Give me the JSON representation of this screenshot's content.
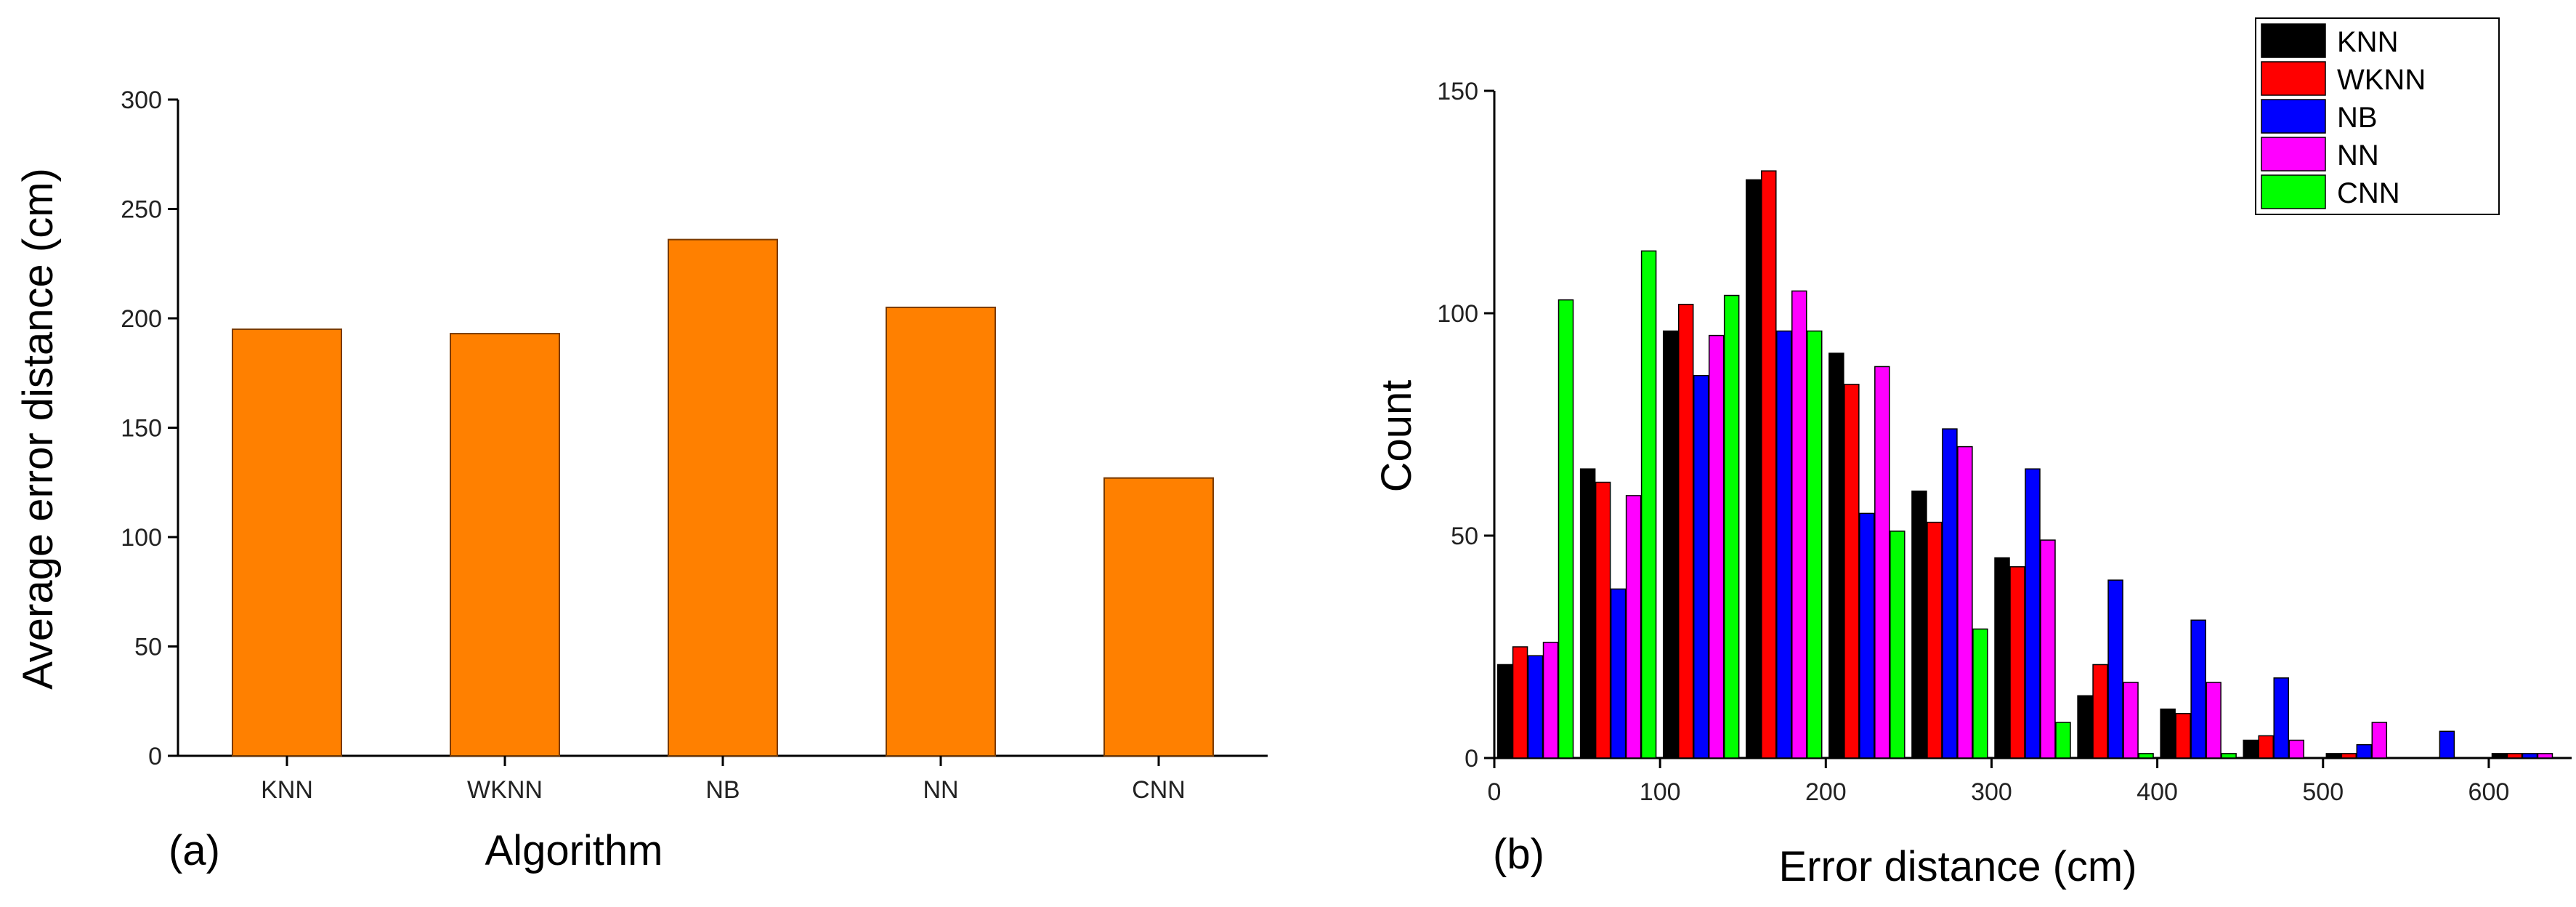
{
  "chart_data": [
    {
      "type": "bar",
      "panel_label": "(a)",
      "title": "",
      "xlabel": "Algorithm",
      "ylabel": "Average error distance (cm)",
      "categories": [
        "KNN",
        "WKNN",
        "NB",
        "NN",
        "CNN"
      ],
      "values": [
        195,
        193,
        236,
        205,
        127
      ],
      "ylim": [
        0,
        300
      ],
      "yticks": [
        0,
        50,
        100,
        150,
        200,
        250,
        300
      ],
      "bar_color": "#FF8000",
      "grid": false
    },
    {
      "type": "bar",
      "panel_label": "(b)",
      "title": "",
      "xlabel": "Error distance (cm)",
      "ylabel": "Count",
      "bin_centers": [
        25,
        75,
        125,
        175,
        225,
        275,
        325,
        375,
        425,
        475,
        525,
        575,
        625
      ],
      "xlim": [
        0,
        650
      ],
      "xticks": [
        0,
        100,
        200,
        300,
        400,
        500,
        600
      ],
      "ylim": [
        0,
        150
      ],
      "yticks": [
        0,
        50,
        100,
        150
      ],
      "legend_position": "top-right",
      "grid": false,
      "series": [
        {
          "name": "KNN",
          "color": "#000000",
          "values": [
            21,
            65,
            96,
            130,
            91,
            60,
            45,
            14,
            11,
            4,
            1,
            0,
            1
          ]
        },
        {
          "name": "WKNN",
          "color": "#FF0000",
          "values": [
            25,
            62,
            102,
            132,
            84,
            53,
            43,
            21,
            10,
            5,
            1,
            0,
            1
          ]
        },
        {
          "name": "NB",
          "color": "#0000FF",
          "values": [
            23,
            38,
            86,
            96,
            55,
            74,
            65,
            40,
            31,
            18,
            3,
            6,
            1
          ]
        },
        {
          "name": "NN",
          "color": "#FF00FF",
          "values": [
            26,
            59,
            95,
            105,
            88,
            70,
            49,
            17,
            17,
            4,
            8,
            0,
            1
          ]
        },
        {
          "name": "CNN",
          "color": "#00FF00",
          "values": [
            103,
            114,
            104,
            96,
            51,
            29,
            8,
            1,
            1,
            0,
            0,
            0,
            0
          ]
        }
      ]
    }
  ]
}
